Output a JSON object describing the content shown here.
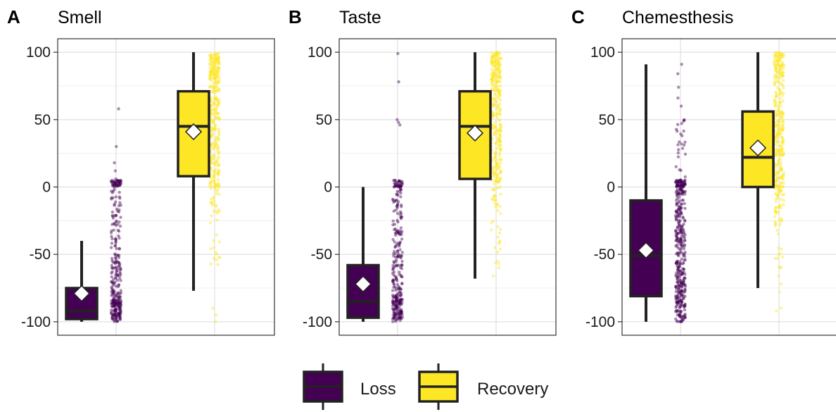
{
  "chart_data": [
    {
      "type": "box",
      "letter": "A",
      "title": "Smell",
      "ylim": [
        -110,
        110
      ],
      "yticks": [
        -100,
        -50,
        0,
        50,
        100
      ],
      "ytick_labels": [
        "-100",
        "-50",
        "0",
        "50",
        "100"
      ],
      "grid": true,
      "series": [
        {
          "name": "Loss",
          "color": "#440154",
          "whisker_low": -100,
          "q1": -98,
          "median": -92,
          "q3": -75,
          "whisker_high": -40,
          "mean": -79,
          "points": {
            "count": 320,
            "dense_ranges": [
              [
                -100,
                -80
              ],
              [
                -80,
                -50
              ],
              [
                -50,
                -20
              ],
              [
                -20,
                0
              ],
              [
                0,
                5
              ]
            ],
            "weights": [
              0.42,
              0.24,
              0.12,
              0.07,
              0.15
            ],
            "outliers": [
              6,
              12,
              18,
              30,
              58
            ]
          }
        },
        {
          "name": "Recovery",
          "color": "#FDE725",
          "whisker_low": -77,
          "q1": 8,
          "median": 45,
          "q3": 71,
          "whisker_high": 100,
          "mean": 41,
          "points": {
            "count": 360,
            "dense_ranges": [
              [
                80,
                100
              ],
              [
                40,
                80
              ],
              [
                0,
                40
              ],
              [
                -20,
                0
              ],
              [
                -60,
                -20
              ]
            ],
            "weights": [
              0.32,
              0.3,
              0.28,
              0.06,
              0.04
            ],
            "outliers": [
              -90,
              -95,
              -100,
              -50,
              -40
            ]
          }
        }
      ]
    },
    {
      "type": "box",
      "letter": "B",
      "title": "Taste",
      "ylim": [
        -110,
        110
      ],
      "yticks": [
        -100,
        -50,
        0,
        50,
        100
      ],
      "ytick_labels": [
        "-100",
        "-50",
        "0",
        "50",
        "100"
      ],
      "grid": true,
      "series": [
        {
          "name": "Loss",
          "color": "#440154",
          "whisker_low": -100,
          "q1": -97,
          "median": -85,
          "q3": -58,
          "whisker_high": 0,
          "mean": -72,
          "points": {
            "count": 300,
            "dense_ranges": [
              [
                -100,
                -80
              ],
              [
                -80,
                -50
              ],
              [
                -50,
                -20
              ],
              [
                -20,
                0
              ],
              [
                0,
                5
              ]
            ],
            "weights": [
              0.4,
              0.22,
              0.16,
              0.1,
              0.12
            ],
            "outliers": [
              46,
              48,
              50,
              78,
              99
            ]
          }
        },
        {
          "name": "Recovery",
          "color": "#FDE725",
          "whisker_low": -68,
          "q1": 6,
          "median": 45,
          "q3": 71,
          "whisker_high": 100,
          "mean": 40,
          "points": {
            "count": 340,
            "dense_ranges": [
              [
                80,
                100
              ],
              [
                40,
                80
              ],
              [
                0,
                40
              ],
              [
                -20,
                0
              ],
              [
                -60,
                -20
              ]
            ],
            "weights": [
              0.3,
              0.32,
              0.28,
              0.06,
              0.04
            ],
            "outliers": [
              -55,
              -60,
              -66,
              -45
            ]
          }
        }
      ]
    },
    {
      "type": "box",
      "letter": "C",
      "title": "Chemesthesis",
      "ylim": [
        -110,
        110
      ],
      "yticks": [
        -100,
        -50,
        0,
        50,
        100
      ],
      "ytick_labels": [
        "-100",
        "-50",
        "0",
        "50",
        "100"
      ],
      "grid": true,
      "series": [
        {
          "name": "Loss",
          "color": "#440154",
          "whisker_low": -100,
          "q1": -81,
          "median": -51,
          "q3": -10,
          "whisker_high": 91,
          "mean": -47,
          "points": {
            "count": 420,
            "dense_ranges": [
              [
                -100,
                -70
              ],
              [
                -70,
                -30
              ],
              [
                -30,
                0
              ],
              [
                0,
                5
              ],
              [
                5,
                50
              ]
            ],
            "weights": [
              0.3,
              0.3,
              0.2,
              0.14,
              0.06
            ],
            "outliers": [
              60,
              66,
              74,
              84,
              91
            ]
          }
        },
        {
          "name": "Recovery",
          "color": "#FDE725",
          "whisker_low": -75,
          "q1": 0,
          "median": 22,
          "q3": 56,
          "whisker_high": 100,
          "mean": 29,
          "points": {
            "count": 360,
            "dense_ranges": [
              [
                80,
                100
              ],
              [
                40,
                80
              ],
              [
                0,
                40
              ],
              [
                -20,
                0
              ],
              [
                -60,
                -20
              ]
            ],
            "weights": [
              0.24,
              0.26,
              0.34,
              0.1,
              0.06
            ],
            "outliers": [
              -72,
              -78,
              -90,
              -92,
              -66
            ]
          }
        }
      ]
    }
  ],
  "legend": {
    "placement": "bottom",
    "items": [
      {
        "label": "Loss",
        "color": "#440154"
      },
      {
        "label": "Recovery",
        "color": "#FDE725"
      }
    ]
  }
}
